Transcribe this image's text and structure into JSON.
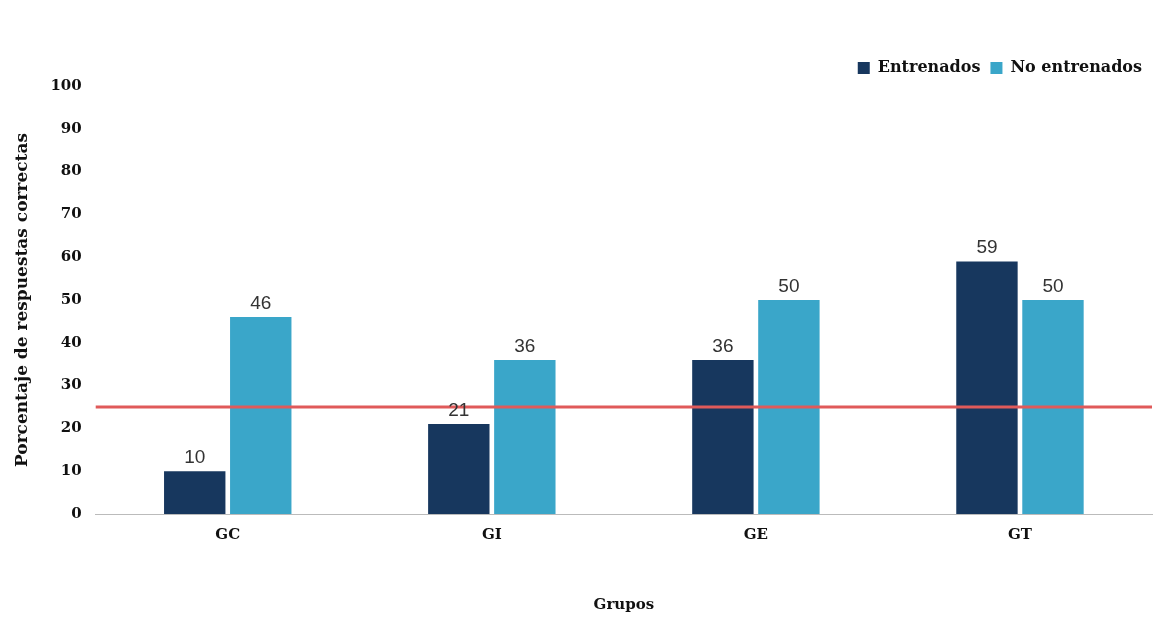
{
  "chart_data": {
    "type": "bar",
    "xlabel": "Grupos",
    "ylabel": "Porcentaje de respuestas correctas",
    "categories": [
      "GC",
      "GI",
      "GE",
      "GT"
    ],
    "series": [
      {
        "name": "Entrenados",
        "color": "#17375e",
        "values": [
          10,
          21,
          36,
          59
        ]
      },
      {
        "name": "No entrenados",
        "color": "#3aa6c9",
        "values": [
          46,
          36,
          50,
          50
        ]
      }
    ],
    "ylim": [
      0,
      100
    ],
    "yticks": [
      0,
      10,
      20,
      30,
      40,
      50,
      60,
      70,
      80,
      90,
      100
    ],
    "grid": false,
    "legend": "top right",
    "data_labels": true,
    "ref_lines": [
      {
        "axis": "y",
        "value": 25,
        "color": "#e05a5a"
      }
    ]
  }
}
